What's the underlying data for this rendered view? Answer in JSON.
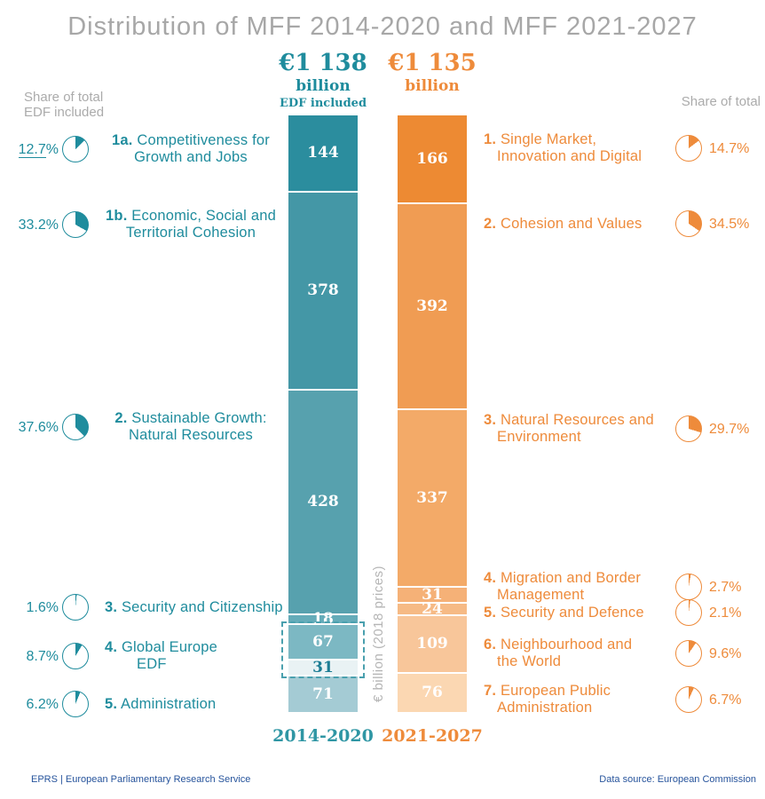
{
  "title": "Distribution of MFF 2014-2020 and MFF 2021-2027",
  "footer": {
    "left": "EPRS | European Parliamentary Research Service",
    "right": "Data source: European Commission"
  },
  "chart_data": {
    "type": "bar",
    "subtype": "stacked-comparison",
    "title": "Distribution of MFF 2014-2020 and MFF 2021-2027",
    "ylabel": "€ billion (2018 prices)",
    "grid": false,
    "edf_box": {
      "series": 0,
      "from": 4,
      "to": 5,
      "border_color": "#4aa0ae"
    },
    "series": [
      {
        "name": "2014-2020",
        "total_label": "€1 138",
        "unit": "billion",
        "note": "EDF included",
        "total_value": 1138,
        "share_note": [
          "Share of total",
          "EDF included"
        ],
        "accent_color": "#1f8c9d",
        "segments": [
          {
            "num": "1a.",
            "label_lines": [
              "Competitiveness for",
              "Growth and Jobs"
            ],
            "value": 144,
            "share": "12.7%",
            "share_underline": true,
            "color": "#2b8d9e"
          },
          {
            "num": "1b.",
            "label_lines": [
              "Economic, Social and",
              "Territorial Cohesion"
            ],
            "value": 378,
            "share": "33.2%",
            "color": "#4497a6"
          },
          {
            "num": "2.",
            "label_lines": [
              "Sustainable Growth:",
              "Natural Resources"
            ],
            "value": 428,
            "share": "37.6%",
            "color": "#57a1ae"
          },
          {
            "num": "3.",
            "label_lines": [
              "Security and Citizenship"
            ],
            "value": 18,
            "share": "1.6%",
            "color": "#65acb9"
          },
          {
            "num": "4.",
            "label_lines": [
              "Global Europe",
              "EDF"
            ],
            "value": 67,
            "share": "8.7%",
            "color": "#7cb8c3"
          },
          {
            "num": "",
            "label_lines": [],
            "value": 31,
            "share": null,
            "color": "#e9f2f4",
            "value_color": "#1d7d94"
          },
          {
            "num": "5.",
            "label_lines": [
              "Administration"
            ],
            "value": 71,
            "share": "6.2%",
            "color": "#a4cbd4"
          }
        ]
      },
      {
        "name": "2021-2027",
        "total_label": "€1 135",
        "unit": "billion",
        "note": null,
        "total_value": 1135,
        "share_note": [
          "Share of total"
        ],
        "accent_color": "#ee8b3b",
        "segments": [
          {
            "num": "1.",
            "label_lines": [
              "Single Market,",
              "Innovation and Digital"
            ],
            "value": 166,
            "share": "14.7%",
            "color": "#ed8a33"
          },
          {
            "num": "2.",
            "label_lines": [
              "Cohesion and Values"
            ],
            "value": 392,
            "share": "34.5%",
            "color": "#f09c53"
          },
          {
            "num": "3.",
            "label_lines": [
              "Natural Resources and",
              "Environment"
            ],
            "value": 337,
            "share": "29.7%",
            "color": "#f3aa68"
          },
          {
            "num": "4.",
            "label_lines": [
              "Migration and Border",
              "Management"
            ],
            "value": 31,
            "share": "2.7%",
            "color": "#f5b177"
          },
          {
            "num": "5.",
            "label_lines": [
              "Security and Defence"
            ],
            "value": 24,
            "share": "2.1%",
            "color": "#f6ba85"
          },
          {
            "num": "6.",
            "label_lines": [
              "Neighbourhood and",
              "the World"
            ],
            "value": 109,
            "share": "9.6%",
            "color": "#f8c69a"
          },
          {
            "num": "7.",
            "label_lines": [
              "European Public",
              "Administration"
            ],
            "value": 76,
            "share": "6.7%",
            "color": "#fbd7b2"
          }
        ]
      }
    ]
  }
}
